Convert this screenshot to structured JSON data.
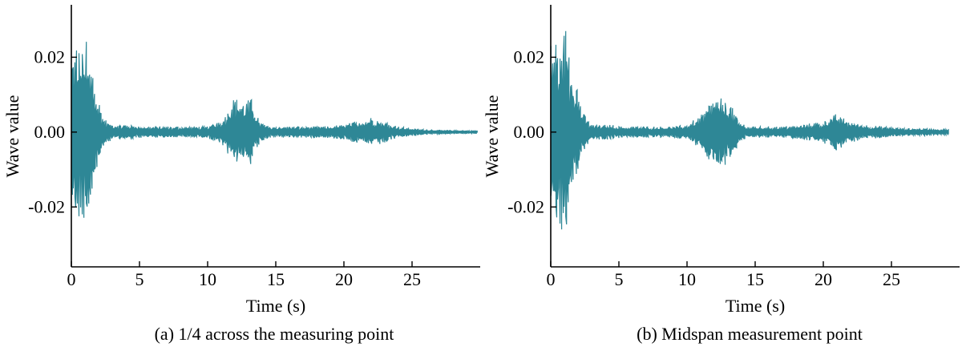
{
  "chart_data": [
    {
      "type": "line",
      "caption": "(a) 1/4 across the measuring point",
      "xlabel": "Time (s)",
      "ylabel": "Wave value",
      "xticks": [
        0,
        5,
        10,
        15,
        20,
        25
      ],
      "xtick_labels": [
        "0",
        "5",
        "10",
        "15",
        "20",
        "25"
      ],
      "yticks": [
        0.02,
        0.0,
        -0.02
      ],
      "ytick_labels": [
        "0.02",
        "0.00",
        "-0.02"
      ],
      "xlim": [
        0,
        30
      ],
      "ylim": [
        -0.036,
        0.034
      ],
      "color": "#2e8796",
      "grid": false,
      "series": [
        {
          "bursts": [
            {
              "t": 0.2,
              "a": 0.021
            },
            {
              "t": 0.4,
              "a": 0.025
            },
            {
              "t": 0.6,
              "a": 0.024
            },
            {
              "t": 0.8,
              "a": 0.023
            },
            {
              "t": 1.0,
              "a": 0.027
            },
            {
              "t": 1.2,
              "a": 0.022
            },
            {
              "t": 1.4,
              "a": 0.02
            },
            {
              "t": 1.6,
              "a": 0.017
            },
            {
              "t": 1.8,
              "a": 0.013
            },
            {
              "t": 2.0,
              "a": 0.009
            },
            {
              "t": 2.2,
              "a": 0.006
            },
            {
              "t": 2.4,
              "a": 0.004
            },
            {
              "t": 2.6,
              "a": 0.003
            },
            {
              "t": 3.0,
              "a": 0.002
            },
            {
              "t": 3.6,
              "a": 0.002
            },
            {
              "t": 4.4,
              "a": 0.002
            },
            {
              "t": 5.2,
              "a": 0.0015
            },
            {
              "t": 6.0,
              "a": 0.0015
            },
            {
              "t": 6.8,
              "a": 0.0015
            },
            {
              "t": 8.0,
              "a": 0.0015
            },
            {
              "t": 9.0,
              "a": 0.0015
            },
            {
              "t": 10.0,
              "a": 0.0015
            },
            {
              "t": 11.2,
              "a": 0.004
            },
            {
              "t": 11.8,
              "a": 0.009
            },
            {
              "t": 12.2,
              "a": 0.009
            },
            {
              "t": 12.6,
              "a": 0.008
            },
            {
              "t": 13.2,
              "a": 0.009
            },
            {
              "t": 13.8,
              "a": 0.003
            },
            {
              "t": 14.5,
              "a": 0.0015
            },
            {
              "t": 15.5,
              "a": 0.0015
            },
            {
              "t": 17.0,
              "a": 0.0015
            },
            {
              "t": 18.5,
              "a": 0.0015
            },
            {
              "t": 20.0,
              "a": 0.002
            },
            {
              "t": 21.0,
              "a": 0.003
            },
            {
              "t": 22.0,
              "a": 0.004
            },
            {
              "t": 23.0,
              "a": 0.003
            },
            {
              "t": 24.0,
              "a": 0.0015
            },
            {
              "t": 25.5,
              "a": 0.0008
            },
            {
              "t": 27.0,
              "a": 0.0005
            },
            {
              "t": 29.8,
              "a": 0.0004
            }
          ]
        }
      ]
    },
    {
      "type": "line",
      "caption": "(b) Midspan measurement point",
      "xlabel": "Time (s)",
      "ylabel": "Wave value",
      "xticks": [
        0,
        5,
        10,
        15,
        20,
        25
      ],
      "xtick_labels": [
        "0",
        "5",
        "10",
        "15",
        "20",
        "25"
      ],
      "yticks": [
        0.02,
        0.0,
        -0.02
      ],
      "ytick_labels": [
        "0.02",
        "0.00",
        "-0.02"
      ],
      "xlim": [
        0,
        30
      ],
      "ylim": [
        -0.036,
        0.034
      ],
      "color": "#2e8796",
      "grid": false,
      "series": [
        {
          "bursts": [
            {
              "t": 0.2,
              "a": 0.024
            },
            {
              "t": 0.4,
              "a": 0.026
            },
            {
              "t": 0.6,
              "a": 0.025
            },
            {
              "t": 0.8,
              "a": 0.027
            },
            {
              "t": 1.0,
              "a": 0.027
            },
            {
              "t": 1.2,
              "a": 0.03
            },
            {
              "t": 1.4,
              "a": 0.022
            },
            {
              "t": 1.6,
              "a": 0.019
            },
            {
              "t": 1.8,
              "a": 0.016
            },
            {
              "t": 2.0,
              "a": 0.012
            },
            {
              "t": 2.2,
              "a": 0.008
            },
            {
              "t": 2.4,
              "a": 0.005
            },
            {
              "t": 2.6,
              "a": 0.004
            },
            {
              "t": 3.0,
              "a": 0.002
            },
            {
              "t": 3.6,
              "a": 0.002
            },
            {
              "t": 4.4,
              "a": 0.002
            },
            {
              "t": 5.2,
              "a": 0.0015
            },
            {
              "t": 6.0,
              "a": 0.0015
            },
            {
              "t": 7.0,
              "a": 0.0015
            },
            {
              "t": 8.0,
              "a": 0.0015
            },
            {
              "t": 9.0,
              "a": 0.0015
            },
            {
              "t": 10.0,
              "a": 0.002
            },
            {
              "t": 11.2,
              "a": 0.005
            },
            {
              "t": 11.6,
              "a": 0.008
            },
            {
              "t": 12.0,
              "a": 0.009
            },
            {
              "t": 12.6,
              "a": 0.009
            },
            {
              "t": 13.0,
              "a": 0.009
            },
            {
              "t": 13.8,
              "a": 0.003
            },
            {
              "t": 14.5,
              "a": 0.0015
            },
            {
              "t": 15.5,
              "a": 0.0015
            },
            {
              "t": 17.0,
              "a": 0.0015
            },
            {
              "t": 18.5,
              "a": 0.002
            },
            {
              "t": 20.0,
              "a": 0.003
            },
            {
              "t": 21.0,
              "a": 0.005
            },
            {
              "t": 21.8,
              "a": 0.003
            },
            {
              "t": 23.0,
              "a": 0.002
            },
            {
              "t": 24.5,
              "a": 0.0015
            },
            {
              "t": 26.0,
              "a": 0.001
            },
            {
              "t": 27.5,
              "a": 0.001
            },
            {
              "t": 29.2,
              "a": 0.0008
            }
          ]
        }
      ]
    }
  ]
}
